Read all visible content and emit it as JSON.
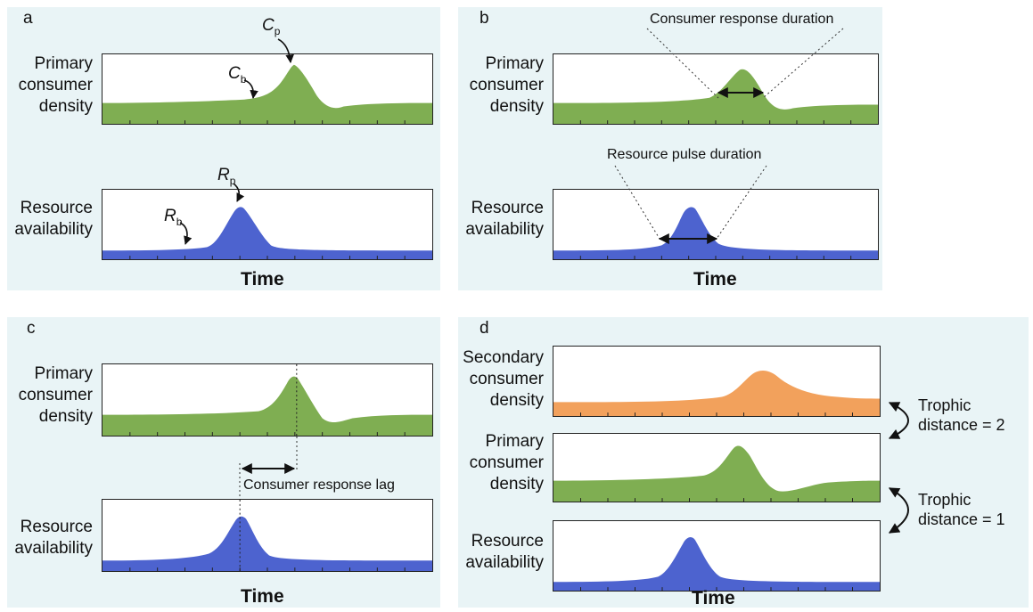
{
  "panels": {
    "a": {
      "label": "a",
      "primary_label": [
        "Primary",
        "consumer",
        "density"
      ],
      "resource_label": [
        "Resource",
        "availability"
      ],
      "xlabel": "Time",
      "c_p": {
        "letter": "C",
        "sub": "p"
      },
      "c_b": {
        "letter": "C",
        "sub": "b"
      },
      "r_p": {
        "letter": "R",
        "sub": "p"
      },
      "r_b": {
        "letter": "R",
        "sub": "b"
      }
    },
    "b": {
      "label": "b",
      "primary_label": [
        "Primary",
        "consumer",
        "density"
      ],
      "resource_label": [
        "Resource",
        "availability"
      ],
      "xlabel": "Time",
      "consumer_duration": "Consumer response duration",
      "pulse_duration": "Resource pulse duration"
    },
    "c": {
      "label": "c",
      "primary_label": [
        "Primary",
        "consumer",
        "density"
      ],
      "resource_label": [
        "Resource",
        "availability"
      ],
      "xlabel": "Time",
      "lag": "Consumer response lag"
    },
    "d": {
      "label": "d",
      "secondary_label": [
        "Secondary",
        "consumer",
        "density"
      ],
      "primary_label": [
        "Primary",
        "consumer",
        "density"
      ],
      "resource_label": [
        "Resource",
        "availability"
      ],
      "xlabel": "Time",
      "trophic2": [
        "Trophic",
        "distance = 2"
      ],
      "trophic1": [
        "Trophic",
        "distance = 1"
      ]
    }
  },
  "colors": {
    "consumer": "#7fae52",
    "resource": "#4d63cf",
    "secondary": "#f2a15c",
    "panel_bg": "#e9f4f6"
  }
}
